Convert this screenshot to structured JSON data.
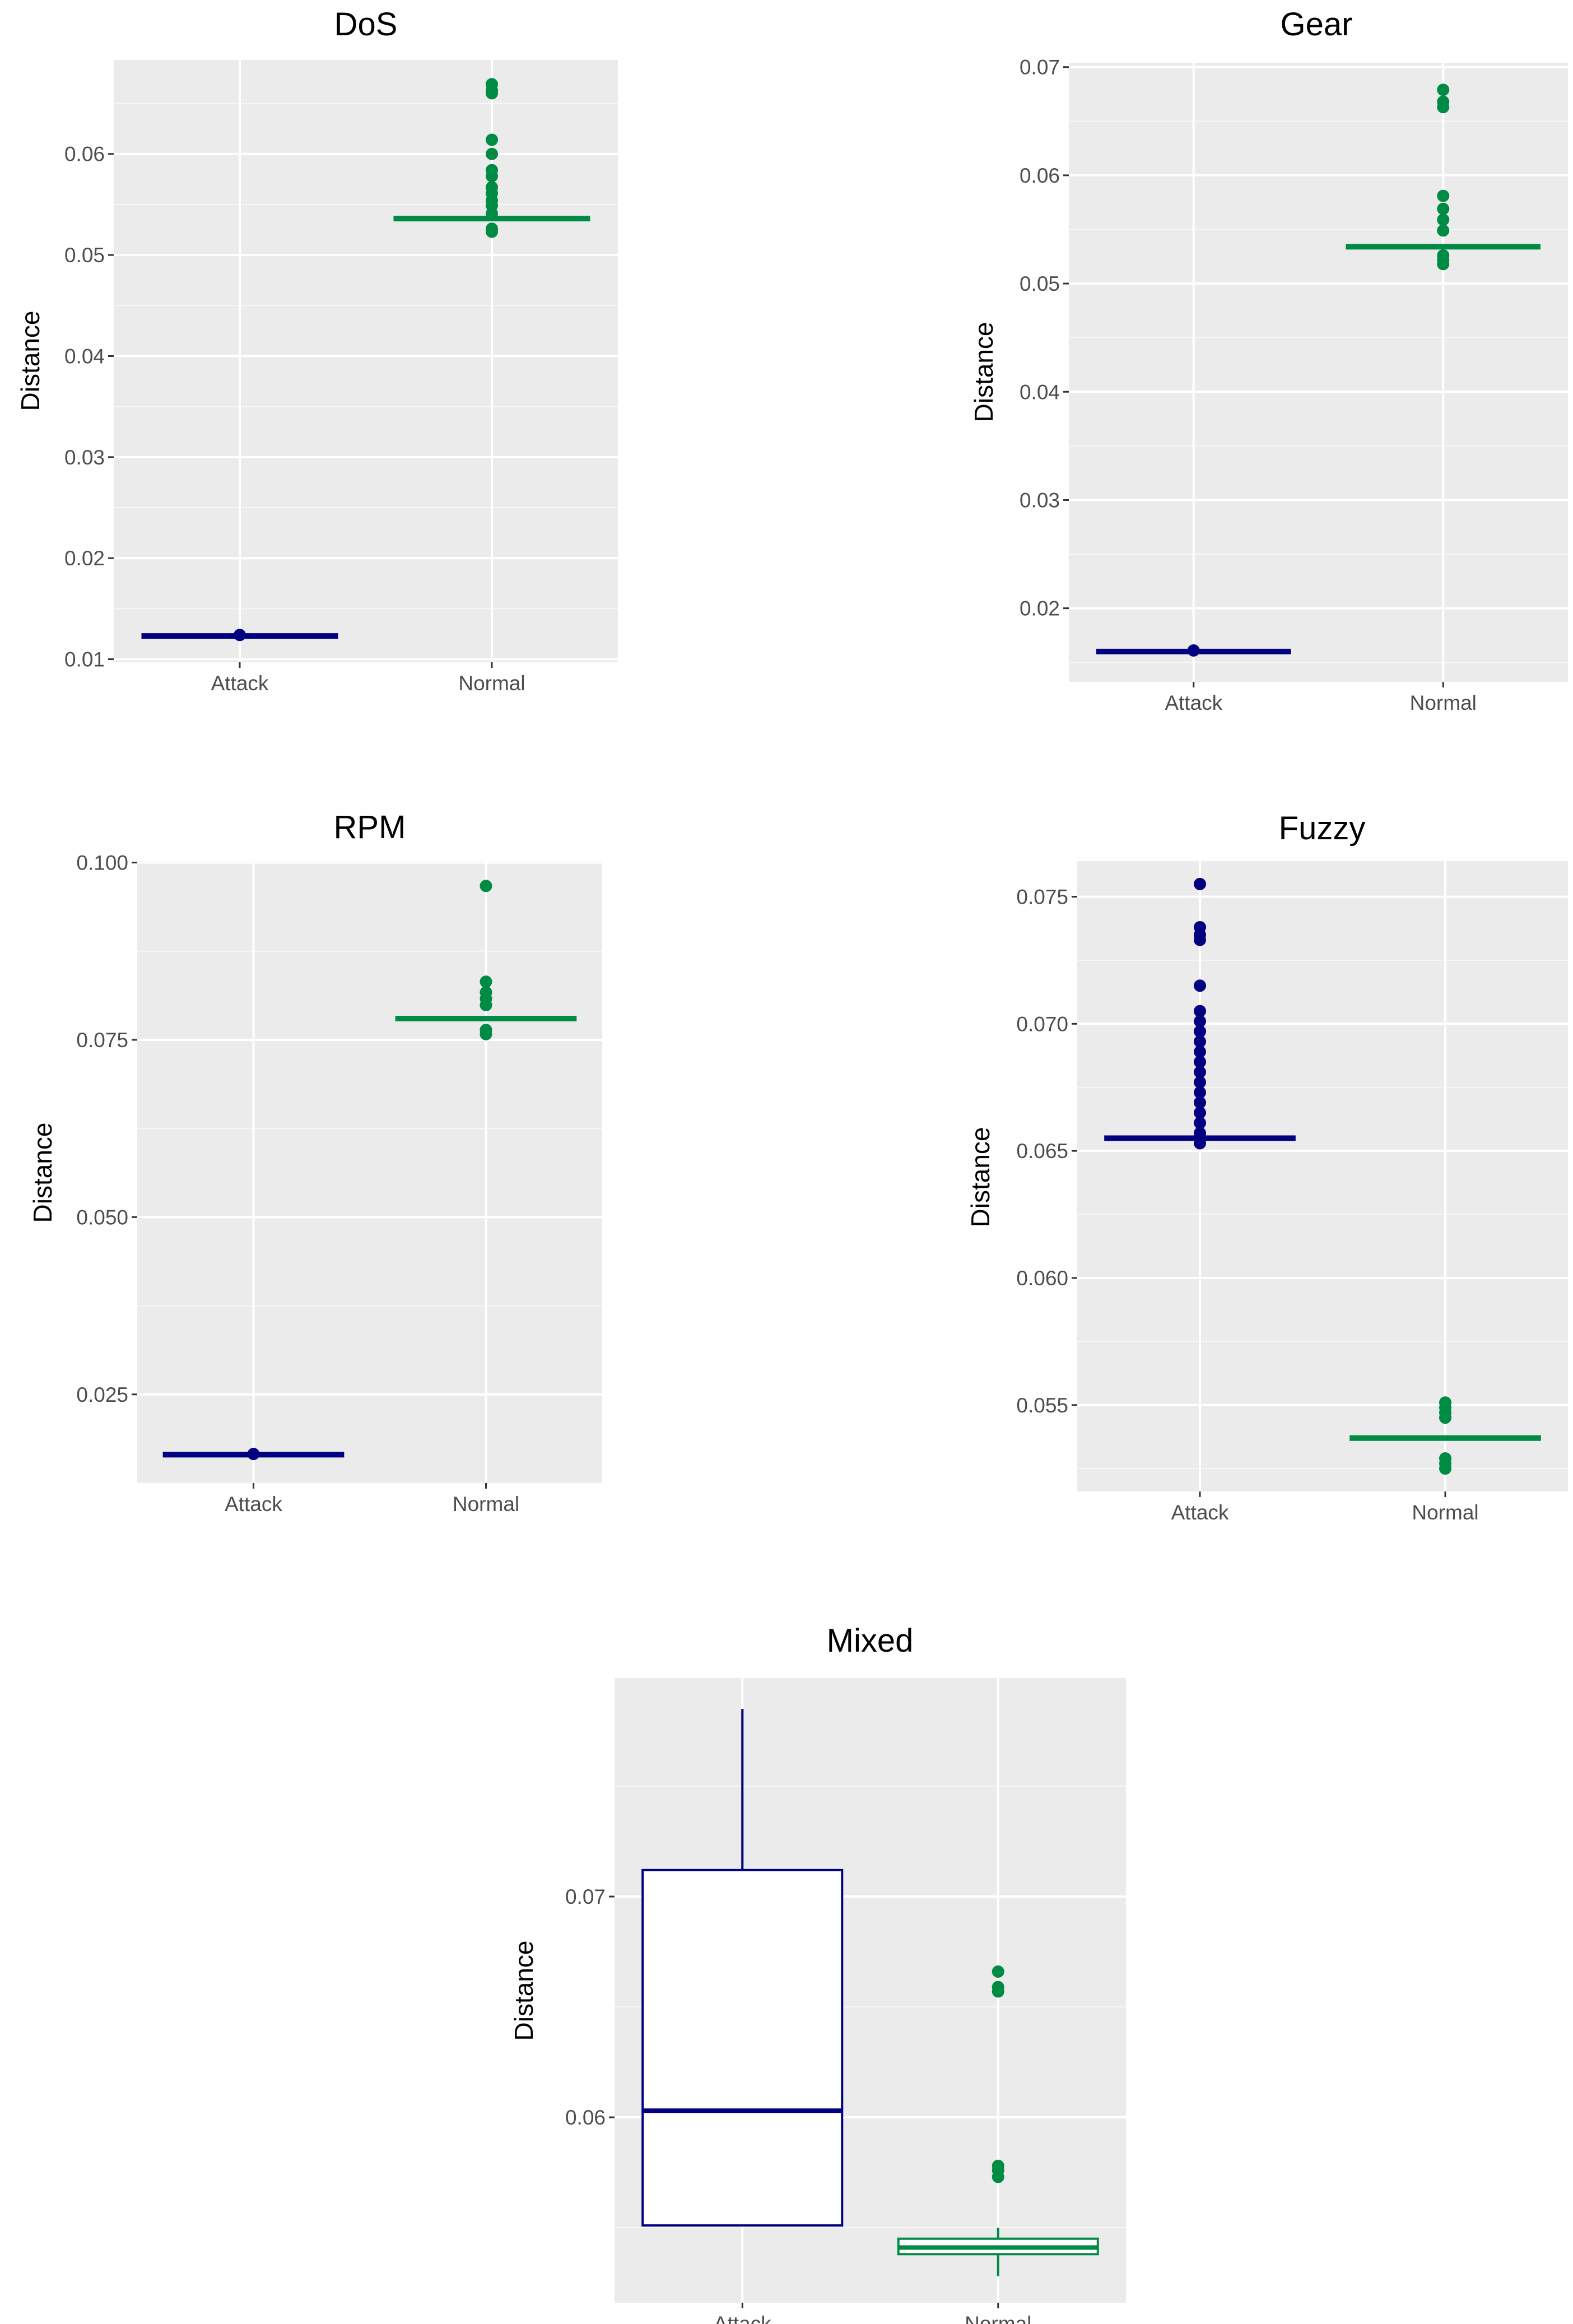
{
  "figure": {
    "description_free": true
  },
  "chart_data": [
    {
      "type": "box",
      "title": "DoS",
      "xlabel": "",
      "ylabel": "Distance",
      "categories": [
        "Attack",
        "Normal"
      ],
      "ylim": [
        0.0097,
        0.0693
      ],
      "yticks": [
        0.01,
        0.02,
        0.03,
        0.04,
        0.05,
        0.06
      ],
      "yticklabels": [
        "0.01",
        "0.02",
        "0.03",
        "0.04",
        "0.05",
        "0.06"
      ],
      "series": [
        {
          "name": "Attack",
          "color": "#000080",
          "q1": 0.0123,
          "median": 0.0123,
          "q3": 0.0123,
          "whisker_low": 0.0123,
          "whisker_high": 0.0123,
          "outliers": [
            0.0124
          ]
        },
        {
          "name": "Normal",
          "color": "#008B45",
          "q1": 0.0536,
          "median": 0.0536,
          "q3": 0.0536,
          "whisker_low": 0.0536,
          "whisker_high": 0.0536,
          "outliers": [
            0.0669,
            0.0663,
            0.066,
            0.0614,
            0.06,
            0.0584,
            0.0578,
            0.0567,
            0.0561,
            0.0554,
            0.0549,
            0.0541,
            0.0526,
            0.0523
          ]
        }
      ]
    },
    {
      "type": "box",
      "title": "Gear",
      "xlabel": "",
      "ylabel": "Distance",
      "categories": [
        "Attack",
        "Normal"
      ],
      "ylim": [
        0.0132,
        0.0704
      ],
      "yticks": [
        0.02,
        0.03,
        0.04,
        0.05,
        0.06,
        0.07
      ],
      "yticklabels": [
        "0.02",
        "0.03",
        "0.04",
        "0.05",
        "0.06",
        "0.07"
      ],
      "series": [
        {
          "name": "Attack",
          "color": "#000080",
          "q1": 0.016,
          "median": 0.016,
          "q3": 0.016,
          "whisker_low": 0.016,
          "whisker_high": 0.016,
          "outliers": [
            0.0161
          ]
        },
        {
          "name": "Normal",
          "color": "#008B45",
          "q1": 0.0534,
          "median": 0.0534,
          "q3": 0.0534,
          "whisker_low": 0.0534,
          "whisker_high": 0.0534,
          "outliers": [
            0.0679,
            0.0668,
            0.0663,
            0.0581,
            0.0569,
            0.0559,
            0.0549,
            0.0526,
            0.0522,
            0.0518
          ]
        }
      ]
    },
    {
      "type": "box",
      "title": "RPM",
      "xlabel": "",
      "ylabel": "Distance",
      "categories": [
        "Attack",
        "Normal"
      ],
      "ylim": [
        0.0125,
        0.1002
      ],
      "yticks": [
        0.025,
        0.05,
        0.075,
        0.1
      ],
      "yticklabels": [
        "0.025",
        "0.050",
        "0.075",
        "0.100"
      ],
      "series": [
        {
          "name": "Attack",
          "color": "#000080",
          "q1": 0.0165,
          "median": 0.0165,
          "q3": 0.0165,
          "whisker_low": 0.0165,
          "whisker_high": 0.0165,
          "outliers": [
            0.0166
          ]
        },
        {
          "name": "Normal",
          "color": "#008B45",
          "q1": 0.078,
          "median": 0.078,
          "q3": 0.078,
          "whisker_low": 0.078,
          "whisker_high": 0.078,
          "outliers": [
            0.0967,
            0.0832,
            0.0817,
            0.0808,
            0.0799,
            0.0764,
            0.0758
          ]
        }
      ]
    },
    {
      "type": "box",
      "title": "Fuzzy",
      "xlabel": "",
      "ylabel": "Distance",
      "categories": [
        "Attack",
        "Normal"
      ],
      "ylim": [
        0.0516,
        0.0764
      ],
      "yticks": [
        0.055,
        0.06,
        0.065,
        0.07,
        0.075
      ],
      "yticklabels": [
        "0.055",
        "0.060",
        "0.065",
        "0.070",
        "0.075"
      ],
      "series": [
        {
          "name": "Attack",
          "color": "#000080",
          "q1": 0.0655,
          "median": 0.0655,
          "q3": 0.0655,
          "whisker_low": 0.0655,
          "whisker_high": 0.0655,
          "outliers": [
            0.0755,
            0.0738,
            0.0735,
            0.0733,
            0.0715,
            0.0705,
            0.0701,
            0.0697,
            0.0693,
            0.0689,
            0.0685,
            0.0681,
            0.0677,
            0.0673,
            0.0669,
            0.0665,
            0.0661,
            0.0657,
            0.0653
          ]
        },
        {
          "name": "Normal",
          "color": "#008B45",
          "q1": 0.0537,
          "median": 0.0537,
          "q3": 0.0537,
          "whisker_low": 0.0537,
          "whisker_high": 0.0537,
          "outliers": [
            0.0551,
            0.0549,
            0.0547,
            0.0545,
            0.0529,
            0.0527,
            0.0525
          ]
        }
      ]
    },
    {
      "type": "box",
      "title": "Mixed",
      "xlabel": "",
      "ylabel": "Distance",
      "categories": [
        "Attack",
        "Normal"
      ],
      "ylim": [
        0.0516,
        0.0799
      ],
      "yticks": [
        0.06,
        0.07
      ],
      "yticklabels": [
        "0.06",
        "0.07"
      ],
      "series": [
        {
          "name": "Attack",
          "color": "#000080",
          "q1": 0.0551,
          "median": 0.0603,
          "q3": 0.0712,
          "whisker_low": 0.0551,
          "whisker_high": 0.0785,
          "outliers": []
        },
        {
          "name": "Normal",
          "color": "#008B45",
          "q1": 0.0538,
          "median": 0.0541,
          "q3": 0.0545,
          "whisker_low": 0.0528,
          "whisker_high": 0.055,
          "outliers": [
            0.0666,
            0.0659,
            0.0657,
            0.0578,
            0.0576,
            0.0573
          ]
        }
      ]
    }
  ]
}
